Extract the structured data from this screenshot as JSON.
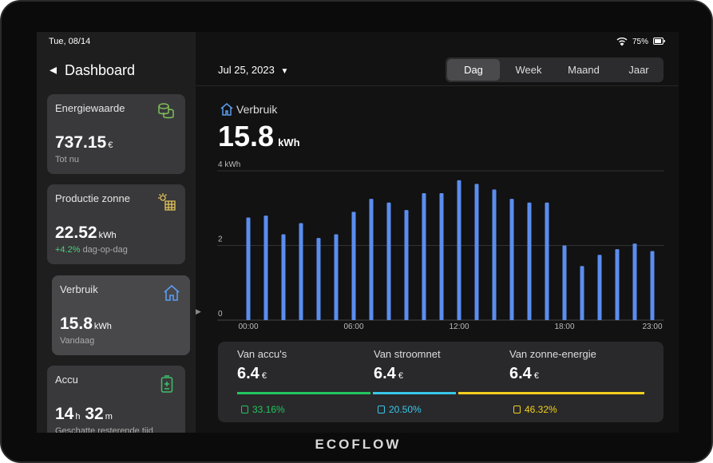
{
  "status_bar": {
    "date": "Tue, 08/14",
    "battery": "75%"
  },
  "sidebar": {
    "title": "Dashboard",
    "cards": [
      {
        "title": "Energiewaarde",
        "value": "737.15",
        "unit": "€",
        "note": "Tot nu"
      },
      {
        "title": "Productie zonne",
        "value": "22.52",
        "unit": "kWh",
        "change": "+4.2%",
        "note": "dag-op-dag"
      },
      {
        "title": "Verbruik",
        "value": "15.8",
        "unit": "kWh",
        "note": "Vandaag"
      },
      {
        "title": "Accu",
        "hours": "14",
        "hours_unit": "h",
        "minutes": "32",
        "minutes_unit": "m",
        "note": "Geschatte resterende tijd"
      }
    ]
  },
  "header": {
    "date": "Jul 25, 2023",
    "tabs": [
      "Dag",
      "Week",
      "Maand",
      "Jaar"
    ],
    "active_tab": 0
  },
  "summary": {
    "title": "Verbruik",
    "value": "15.8",
    "unit": "kWh"
  },
  "chart_data": {
    "type": "bar",
    "categories": [
      "00:00",
      null,
      null,
      null,
      null,
      null,
      "06:00",
      null,
      null,
      null,
      null,
      null,
      "12:00",
      null,
      null,
      null,
      null,
      null,
      "18:00",
      null,
      null,
      null,
      null,
      "23:00"
    ],
    "values": [
      2.75,
      2.8,
      2.3,
      2.6,
      2.2,
      2.3,
      2.9,
      3.25,
      3.15,
      2.95,
      3.4,
      3.4,
      3.75,
      3.65,
      3.5,
      3.25,
      3.15,
      3.15,
      2.0,
      1.45,
      1.75,
      1.9,
      2.05,
      1.85
    ],
    "color": "#5b8def",
    "ylim": [
      0,
      4
    ],
    "yticks": [
      0,
      2,
      {
        "value": 4,
        "label": "4 kWh"
      }
    ],
    "grid": true
  },
  "sources": [
    {
      "label": "Van accu's",
      "value": "6.4",
      "unit": "€",
      "share": "33.16%",
      "color": "#22c55e"
    },
    {
      "label": "Van stroomnet",
      "value": "6.4",
      "unit": "€",
      "share": "20.50%",
      "color": "#38c7e8"
    },
    {
      "label": "Van zonne-energie",
      "value": "6.4",
      "unit": "€",
      "share": "46.32%",
      "color": "#f2cf1d"
    }
  ],
  "brand": "ECOFLOW"
}
